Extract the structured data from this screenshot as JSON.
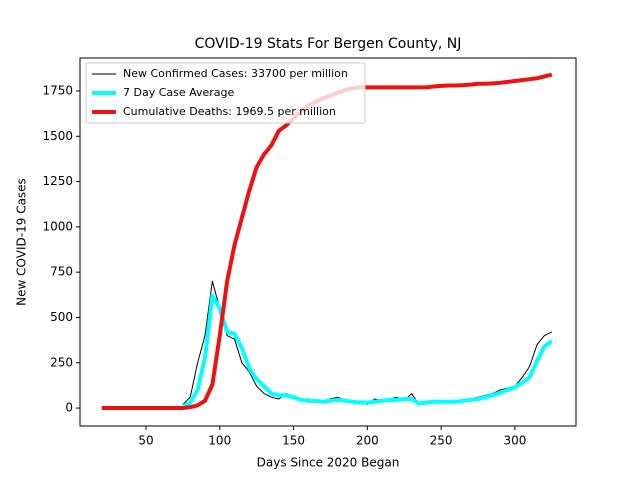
{
  "chart_data": {
    "type": "line",
    "title": "COVID-19 Stats For Bergen County, NJ",
    "x_label": "Days Since 2020 Began",
    "y_label": "New COVID-19 Cases",
    "x": [
      20,
      25,
      30,
      35,
      40,
      45,
      50,
      55,
      60,
      65,
      70,
      75,
      80,
      85,
      90,
      95,
      100,
      105,
      110,
      115,
      120,
      125,
      130,
      135,
      140,
      145,
      150,
      155,
      160,
      165,
      170,
      175,
      180,
      185,
      190,
      195,
      200,
      205,
      210,
      215,
      220,
      225,
      230,
      235,
      240,
      245,
      250,
      255,
      260,
      265,
      270,
      275,
      280,
      285,
      290,
      295,
      300,
      305,
      310,
      315,
      320,
      325
    ],
    "series": [
      {
        "name": "New Confirmed Cases: 33700 per million",
        "color": "#000000",
        "width": 1,
        "values": [
          null,
          null,
          null,
          null,
          null,
          null,
          null,
          null,
          null,
          null,
          null,
          20,
          60,
          250,
          400,
          700,
          550,
          400,
          380,
          250,
          200,
          120,
          80,
          60,
          50,
          80,
          60,
          40,
          50,
          30,
          40,
          50,
          60,
          40,
          30,
          40,
          20,
          50,
          40,
          50,
          60,
          40,
          80,
          20,
          30,
          40,
          30,
          35,
          30,
          40,
          50,
          60,
          70,
          80,
          100,
          110,
          120,
          170,
          230,
          350,
          400,
          420
        ]
      },
      {
        "name": "7 Day Case Average",
        "color": "#00ffff",
        "width": 4,
        "values": [
          null,
          null,
          null,
          null,
          null,
          null,
          null,
          null,
          null,
          null,
          null,
          10,
          30,
          100,
          280,
          620,
          550,
          420,
          410,
          330,
          220,
          160,
          120,
          80,
          70,
          70,
          60,
          45,
          40,
          40,
          35,
          40,
          45,
          40,
          35,
          30,
          30,
          35,
          40,
          45,
          45,
          50,
          50,
          25,
          30,
          35,
          35,
          35,
          35,
          40,
          45,
          50,
          60,
          70,
          85,
          100,
          115,
          140,
          170,
          260,
          340,
          370
        ]
      },
      {
        "name": "Cumulative Deaths: 1969.5 per million",
        "color": "#ee1111",
        "width": 4,
        "values": [
          0,
          0,
          0,
          0,
          0,
          0,
          0,
          0,
          0,
          0,
          0,
          0,
          5,
          15,
          40,
          130,
          400,
          700,
          900,
          1050,
          1200,
          1330,
          1400,
          1450,
          1530,
          1560,
          1600,
          1640,
          1670,
          1690,
          1710,
          1725,
          1740,
          1755,
          1765,
          1770,
          1770,
          1770,
          1770,
          1770,
          1770,
          1770,
          1770,
          1770,
          1770,
          1775,
          1778,
          1780,
          1780,
          1782,
          1785,
          1790,
          1790,
          1792,
          1795,
          1800,
          1805,
          1810,
          1815,
          1820,
          1830,
          1840
        ]
      }
    ],
    "xlim": [
      5.3,
      341.4
    ],
    "xticks": [
      50,
      100,
      150,
      200,
      250,
      300
    ],
    "ylim": [
      -99,
      1932
    ],
    "yticks": [
      0,
      250,
      500,
      750,
      1000,
      1250,
      1500,
      1750
    ],
    "legend": "upper left"
  }
}
